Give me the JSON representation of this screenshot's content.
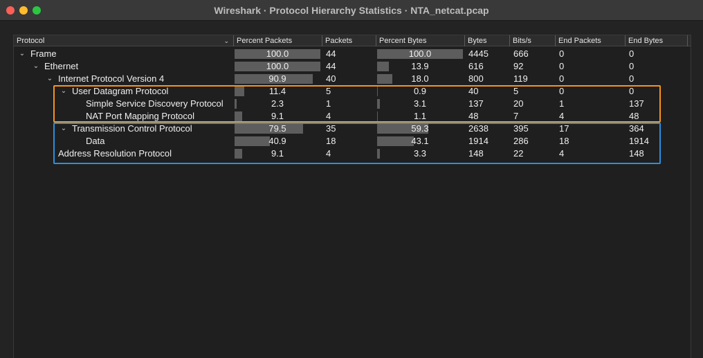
{
  "window": {
    "title": "Wireshark · Protocol Hierarchy Statistics · NTA_netcat.pcap"
  },
  "columns": [
    {
      "key": "protocol",
      "label": "Protocol"
    },
    {
      "key": "percent_packets",
      "label": "Percent Packets"
    },
    {
      "key": "packets",
      "label": "Packets"
    },
    {
      "key": "percent_bytes",
      "label": "Percent Bytes"
    },
    {
      "key": "bytes",
      "label": "Bytes"
    },
    {
      "key": "bits_s",
      "label": "Bits/s"
    },
    {
      "key": "end_packets",
      "label": "End Packets"
    },
    {
      "key": "end_bytes",
      "label": "End Bytes"
    }
  ],
  "rows": [
    {
      "protocol": "Frame",
      "level": 0,
      "expanded": true,
      "percent_packets": "100.0",
      "packets": "44",
      "percent_bytes": "100.0",
      "bytes": "4445",
      "bits_s": "666",
      "end_packets": "0",
      "end_bytes": "0"
    },
    {
      "protocol": "Ethernet",
      "level": 1,
      "expanded": true,
      "percent_packets": "100.0",
      "packets": "44",
      "percent_bytes": "13.9",
      "bytes": "616",
      "bits_s": "92",
      "end_packets": "0",
      "end_bytes": "0"
    },
    {
      "protocol": "Internet Protocol Version 4",
      "level": 2,
      "expanded": true,
      "percent_packets": "90.9",
      "packets": "40",
      "percent_bytes": "18.0",
      "bytes": "800",
      "bits_s": "119",
      "end_packets": "0",
      "end_bytes": "0"
    },
    {
      "protocol": "User Datagram Protocol",
      "level": 3,
      "expanded": true,
      "percent_packets": "11.4",
      "packets": "5",
      "percent_bytes": "0.9",
      "bytes": "40",
      "bits_s": "5",
      "end_packets": "0",
      "end_bytes": "0"
    },
    {
      "protocol": "Simple Service Discovery Protocol",
      "level": 4,
      "expanded": null,
      "percent_packets": "2.3",
      "packets": "1",
      "percent_bytes": "3.1",
      "bytes": "137",
      "bits_s": "20",
      "end_packets": "1",
      "end_bytes": "137"
    },
    {
      "protocol": "NAT Port Mapping Protocol",
      "level": 4,
      "expanded": null,
      "percent_packets": "9.1",
      "packets": "4",
      "percent_bytes": "1.1",
      "bytes": "48",
      "bits_s": "7",
      "end_packets": "4",
      "end_bytes": "48"
    },
    {
      "protocol": "Transmission Control Protocol",
      "level": 3,
      "expanded": true,
      "percent_packets": "79.5",
      "packets": "35",
      "percent_bytes": "59.3",
      "bytes": "2638",
      "bits_s": "395",
      "end_packets": "17",
      "end_bytes": "364"
    },
    {
      "protocol": "Data",
      "level": 4,
      "expanded": null,
      "percent_packets": "40.9",
      "packets": "18",
      "percent_bytes": "43.1",
      "bytes": "1914",
      "bits_s": "286",
      "end_packets": "18",
      "end_bytes": "1914"
    },
    {
      "protocol": "Address Resolution Protocol",
      "level": 2,
      "expanded": null,
      "percent_packets": "9.1",
      "packets": "4",
      "percent_bytes": "3.3",
      "bytes": "148",
      "bits_s": "22",
      "end_packets": "4",
      "end_bytes": "148"
    }
  ],
  "icons": {
    "sort": "chevron-down-icon",
    "expand": "chevron-down-icon"
  },
  "colors": {
    "highlight_udp": "#f7941d",
    "highlight_tcp": "#2c8fe0",
    "bar": "#5d5d5d"
  }
}
